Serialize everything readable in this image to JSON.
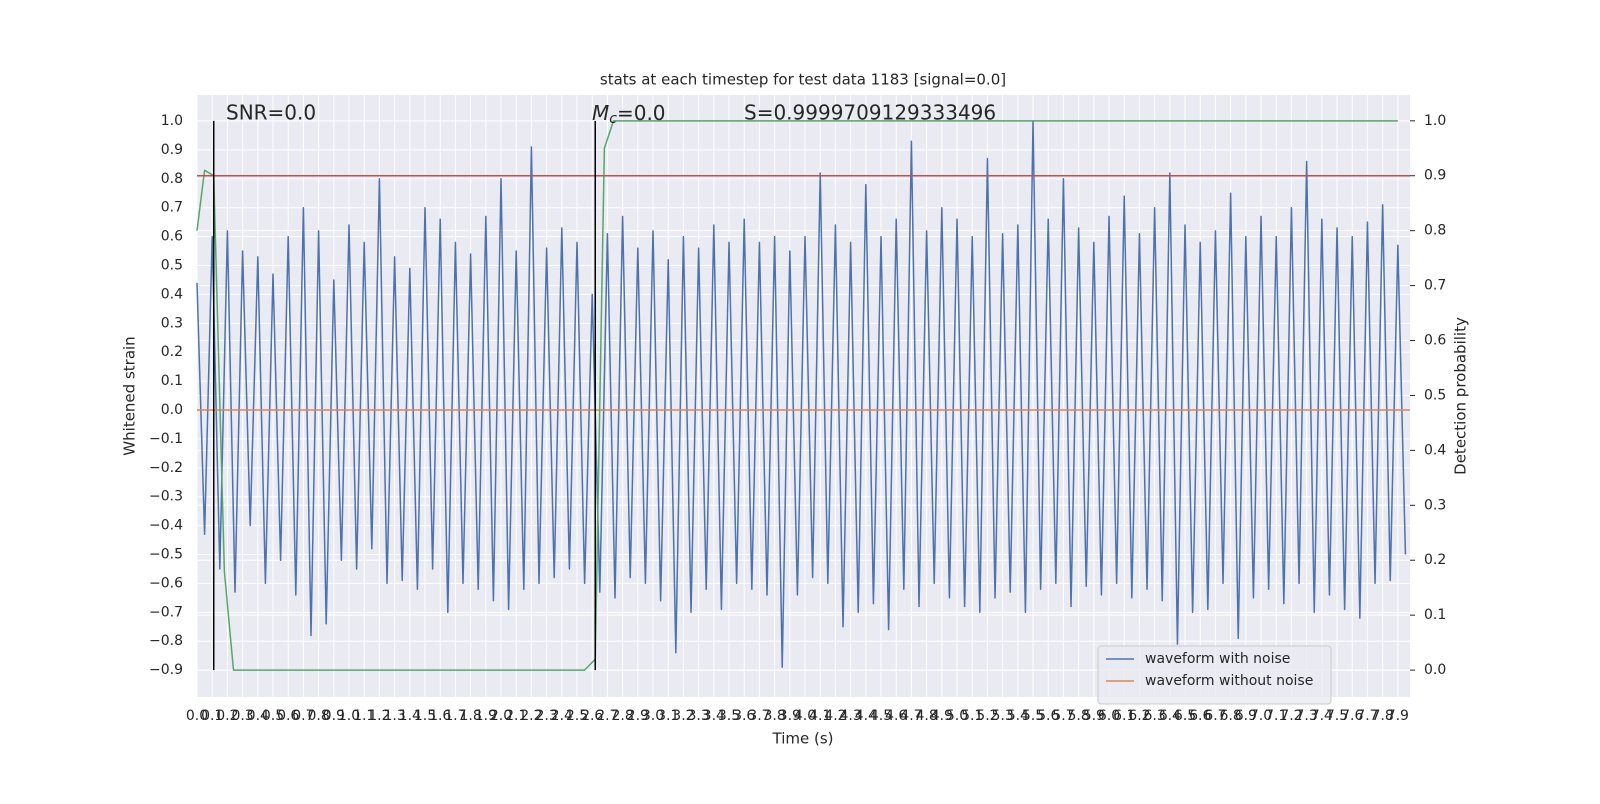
{
  "chart_data": {
    "type": "line",
    "title": "stats at each timestep for test data 1183 [signal=0.0]",
    "xlabel": "Time (s)",
    "ylabel": "Whitened strain",
    "y2label": "Detection probability",
    "annotations": {
      "snr": "SNR=0.0",
      "mc": {
        "symbol": "M",
        "subscript": "c",
        "text": "=0.0"
      },
      "s": "S=0.9999709129333496"
    },
    "grid": true,
    "legend": "lower right",
    "xlim": [
      0,
      7.98
    ],
    "ylim": [
      -0.993,
      1.09
    ],
    "y2lim": [
      -0.049,
      1.047
    ],
    "xticks": [
      {
        "value": 0,
        "label": "0.0"
      },
      0.1,
      0.2,
      0.3,
      0.4,
      0.5,
      0.6,
      0.7,
      0.8,
      0.9,
      {
        "value": 1,
        "label": "1.0"
      },
      1.1,
      1.2,
      1.3,
      1.4,
      1.5,
      1.6,
      1.7,
      1.8,
      1.9,
      {
        "value": 2,
        "label": "2.0"
      },
      2.1,
      2.2,
      2.3,
      2.4,
      2.5,
      2.6,
      2.7,
      2.8,
      2.9,
      {
        "value": 3,
        "label": "3.0"
      },
      3.1,
      3.2,
      3.3,
      3.4,
      3.5,
      3.6,
      3.7,
      3.8,
      3.9,
      {
        "value": 4,
        "label": "4.0"
      },
      4.1,
      4.2,
      4.3,
      4.4,
      4.5,
      4.6,
      4.7,
      4.8,
      4.9,
      {
        "value": 5,
        "label": "5.0"
      },
      5.1,
      5.2,
      5.3,
      5.4,
      5.5,
      5.6,
      5.7,
      5.8,
      5.9,
      {
        "value": 6,
        "label": "6.0"
      },
      6.1,
      6.2,
      6.3,
      6.4,
      6.5,
      6.6,
      6.7,
      6.8,
      6.9,
      {
        "value": 7,
        "label": "7.0"
      },
      7.1,
      7.2,
      7.3,
      7.4,
      7.5,
      7.6,
      7.7,
      7.8,
      7.9
    ],
    "yticks": [
      {
        "value": -0.9,
        "label": "−0.9"
      },
      {
        "value": -0.8,
        "label": "−0.8"
      },
      {
        "value": -0.7,
        "label": "−0.7"
      },
      {
        "value": -0.6,
        "label": "−0.6"
      },
      {
        "value": -0.5,
        "label": "−0.5"
      },
      {
        "value": -0.4,
        "label": "−0.4"
      },
      {
        "value": -0.3,
        "label": "−0.3"
      },
      {
        "value": -0.2,
        "label": "−0.2"
      },
      {
        "value": -0.1,
        "label": "−0.1"
      },
      {
        "value": 0,
        "label": "0.0"
      },
      0.1,
      0.2,
      0.3,
      0.4,
      0.5,
      0.6,
      0.7,
      0.8,
      0.9,
      {
        "value": 1,
        "label": "1.0"
      }
    ],
    "y2ticks": [
      {
        "value": 0,
        "label": "0.0"
      },
      0.1,
      0.2,
      0.3,
      0.4,
      0.5,
      0.6,
      0.7,
      0.8,
      0.9,
      {
        "value": 1,
        "label": "1.0"
      }
    ],
    "series": [
      {
        "name": "waveform with noise",
        "color": "#4c72b0",
        "x": [
          0,
          0.05,
          0.1,
          0.15,
          0.2,
          0.25,
          0.3,
          0.35,
          0.4,
          0.45,
          0.5,
          0.55,
          0.6,
          0.65,
          0.7,
          0.75,
          0.8,
          0.85,
          0.9,
          0.95,
          1,
          1.05,
          1.1,
          1.15,
          1.2,
          1.25,
          1.3,
          1.35,
          1.4,
          1.45,
          1.5,
          1.55,
          1.6,
          1.65,
          1.7,
          1.75,
          1.8,
          1.85,
          1.9,
          1.95,
          2,
          2.05,
          2.1,
          2.15,
          2.2,
          2.25,
          2.3,
          2.35,
          2.4,
          2.45,
          2.5,
          2.55,
          2.6,
          2.65,
          2.7,
          2.75,
          2.8,
          2.85,
          2.9,
          2.95,
          3,
          3.05,
          3.1,
          3.15,
          3.2,
          3.25,
          3.3,
          3.35,
          3.4,
          3.45,
          3.5,
          3.55,
          3.6,
          3.65,
          3.7,
          3.75,
          3.8,
          3.85,
          3.9,
          3.95,
          4,
          4.05,
          4.1,
          4.15,
          4.2,
          4.25,
          4.3,
          4.35,
          4.4,
          4.45,
          4.5,
          4.55,
          4.6,
          4.65,
          4.7,
          4.75,
          4.8,
          4.85,
          4.9,
          4.95,
          5,
          5.05,
          5.1,
          5.15,
          5.2,
          5.25,
          5.3,
          5.35,
          5.4,
          5.45,
          5.5,
          5.55,
          5.6,
          5.65,
          5.7,
          5.75,
          5.8,
          5.85,
          5.9,
          5.95,
          6,
          6.05,
          6.1,
          6.15,
          6.2,
          6.25,
          6.3,
          6.35,
          6.4,
          6.45,
          6.5,
          6.55,
          6.6,
          6.65,
          6.7,
          6.75,
          6.8,
          6.85,
          6.9,
          6.95,
          7,
          7.05,
          7.1,
          7.15,
          7.2,
          7.25,
          7.3,
          7.35,
          7.4,
          7.45,
          7.5,
          7.55,
          7.6,
          7.65,
          7.7,
          7.75,
          7.8,
          7.85,
          7.9,
          7.95
        ],
        "values": [
          0.44,
          -0.43,
          0.6,
          -0.55,
          0.62,
          -0.63,
          0.55,
          -0.4,
          0.53,
          -0.6,
          0.47,
          -0.52,
          0.6,
          -0.64,
          0.7,
          -0.78,
          0.62,
          -0.74,
          0.45,
          -0.52,
          0.64,
          -0.55,
          0.58,
          -0.48,
          0.8,
          -0.6,
          0.53,
          -0.59,
          0.49,
          -0.62,
          0.7,
          -0.55,
          0.66,
          -0.7,
          0.58,
          -0.6,
          0.54,
          -0.62,
          0.67,
          -0.66,
          0.8,
          -0.69,
          0.55,
          -0.62,
          0.91,
          -0.6,
          0.56,
          -0.58,
          0.63,
          -0.55,
          0.58,
          -0.6,
          0.4,
          -0.63,
          0.61,
          -0.65,
          0.67,
          -0.58,
          0.56,
          -0.6,
          0.62,
          -0.66,
          0.52,
          -0.84,
          0.6,
          -0.7,
          0.56,
          -0.62,
          0.64,
          -0.69,
          0.58,
          -0.6,
          0.66,
          -0.62,
          0.58,
          -0.64,
          0.6,
          -0.89,
          0.55,
          -0.64,
          0.6,
          -0.58,
          0.82,
          -0.6,
          0.64,
          -0.75,
          0.58,
          -0.7,
          0.78,
          -0.67,
          0.6,
          -0.76,
          0.66,
          -0.62,
          0.93,
          -0.68,
          0.62,
          -0.6,
          0.7,
          -0.65,
          0.66,
          -0.68,
          0.6,
          -0.7,
          0.87,
          -0.65,
          0.61,
          -0.63,
          0.64,
          -0.7,
          1.0,
          -0.62,
          0.66,
          -0.6,
          0.8,
          -0.68,
          0.63,
          -0.61,
          0.58,
          -0.64,
          0.67,
          -0.6,
          0.74,
          -0.65,
          0.61,
          -0.62,
          0.7,
          -0.66,
          0.82,
          -0.81,
          0.64,
          -0.7,
          0.58,
          -0.69,
          0.62,
          -0.6,
          0.75,
          -0.79,
          0.6,
          -0.65,
          0.67,
          -0.62,
          0.6,
          -0.67,
          0.7,
          -0.6,
          0.86,
          -0.7,
          0.66,
          -0.64,
          0.63,
          -0.69,
          0.6,
          -0.72,
          0.65,
          -0.6,
          0.71,
          -0.59,
          0.57,
          -0.5
        ]
      },
      {
        "name": "waveform without noise",
        "color": "#dd8452",
        "x": [
          0,
          7.98
        ],
        "values": [
          0,
          0
        ]
      },
      {
        "color": "#55a868",
        "axis": "y2",
        "x": [
          0,
          0.05,
          0.11,
          0.18,
          0.24,
          2.55,
          2.62,
          2.68,
          2.74,
          7.9
        ],
        "values": [
          0.8,
          0.91,
          0.9,
          0.18,
          0,
          0,
          0.02,
          0.95,
          1.0,
          1.0
        ]
      }
    ],
    "hlines": [
      {
        "value": 0.9,
        "axis": "y2",
        "color": "#c44e52"
      }
    ],
    "vlines": [
      {
        "x": 0.11,
        "span": [
          0,
          1
        ],
        "axis": "y2",
        "color": "#000000"
      },
      {
        "x": 2.62,
        "span": [
          0,
          1
        ],
        "axis": "y2",
        "color": "#000000"
      }
    ]
  }
}
